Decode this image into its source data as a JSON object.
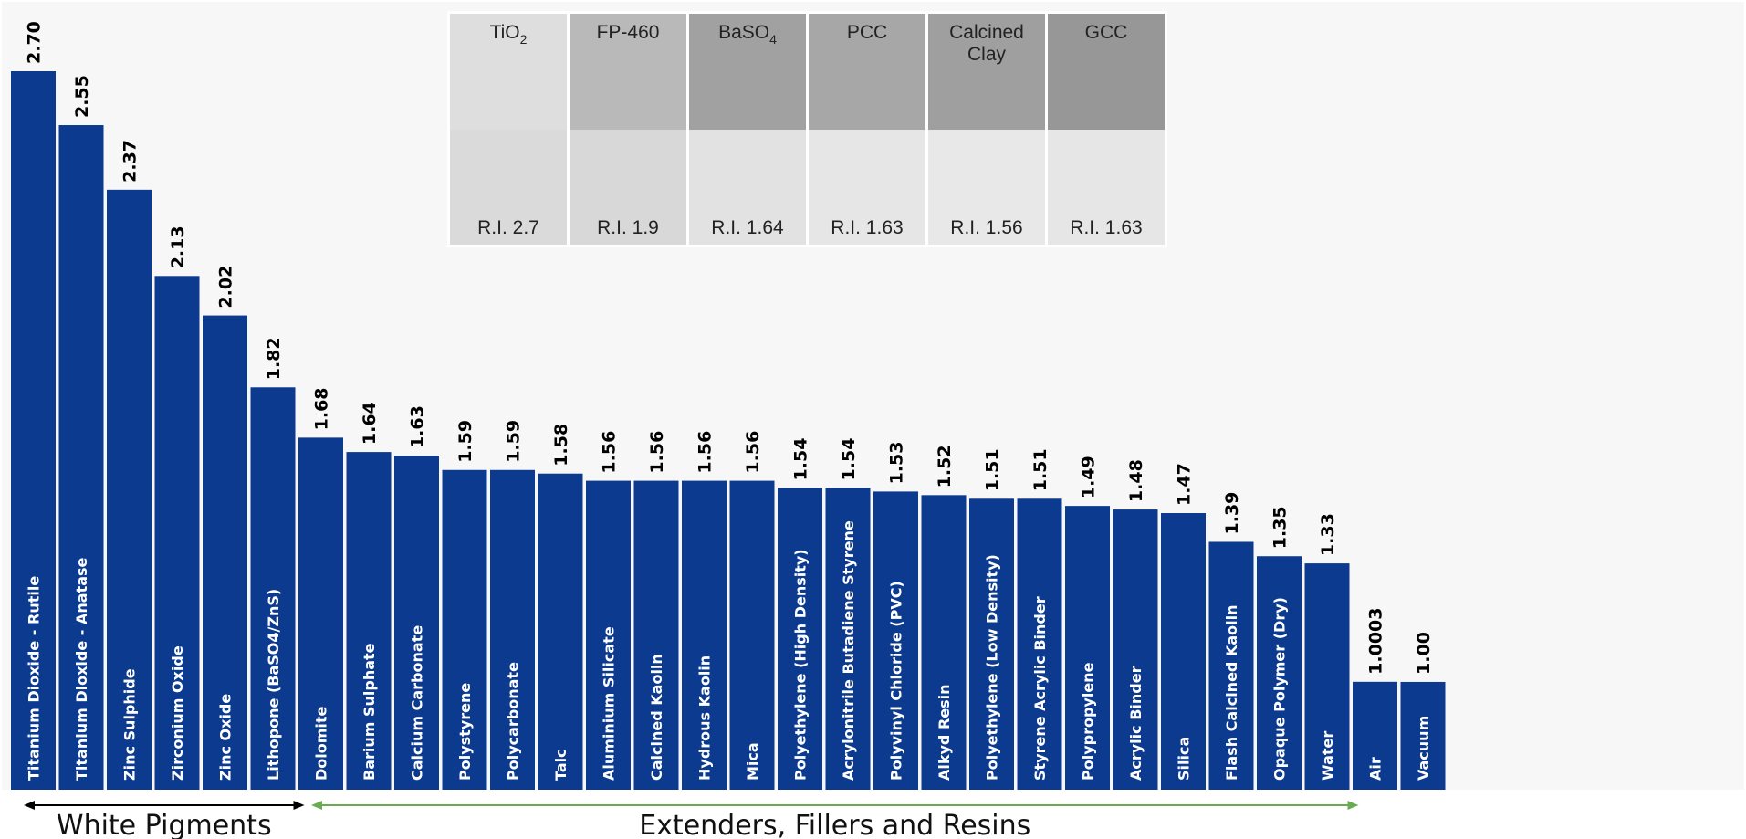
{
  "chart_data": {
    "type": "bar",
    "categories": [
      "Titanium Dioxide - Rutile",
      "Titanium Dioxide - Anatase",
      "Zinc Sulphide",
      "Zirconium Oxide",
      "Zinc Oxide",
      "Lithopone (BaSO4/ZnS)",
      "Dolomite",
      "Barium Sulphate",
      "Calcium Carbonate",
      "Polystyrene",
      "Polycarbonate",
      "Talc",
      "Aluminium Silicate",
      "Calcined Kaolin",
      "Hydrous Kaolin",
      "Mica",
      "Polyethylene (High Density)",
      "Acrylonitrile Butadiene Styrene",
      "Polyvinyl Chloride (PVC)",
      "Alkyd Resin",
      "Polyethylene (Low Density)",
      "Styrene Acrylic Binder",
      "Polypropylene",
      "Acrylic Binder",
      "Silica",
      "Flash Calcined Kaolin",
      "Opaque Polymer (Dry)",
      "Water",
      "Air",
      "Vacuum"
    ],
    "values": [
      2.7,
      2.55,
      2.37,
      2.13,
      2.02,
      1.82,
      1.68,
      1.64,
      1.63,
      1.59,
      1.59,
      1.58,
      1.56,
      1.56,
      1.56,
      1.56,
      1.54,
      1.54,
      1.53,
      1.52,
      1.51,
      1.51,
      1.49,
      1.48,
      1.47,
      1.39,
      1.35,
      1.33,
      1.0003,
      1.0
    ],
    "value_labels": [
      "2.70",
      "2.55",
      "2.37",
      "2.13",
      "2.02",
      "1.82",
      "1.68",
      "1.64",
      "1.63",
      "1.59",
      "1.59",
      "1.58",
      "1.56",
      "1.56",
      "1.56",
      "1.56",
      "1.54",
      "1.54",
      "1.53",
      "1.52",
      "1.51",
      "1.51",
      "1.49",
      "1.48",
      "1.47",
      "1.39",
      "1.35",
      "1.33",
      "1.0003",
      "1.00"
    ],
    "ylim": [
      0.7,
      2.7
    ],
    "grid": false,
    "bar_color": "#0b3a8f",
    "groups": [
      {
        "label": "White Pigments",
        "from_index": 0,
        "to_index": 5,
        "arrow_color": "#000000"
      },
      {
        "label": "Extenders, Fillers and Resins",
        "from_index": 6,
        "to_index": 27,
        "arrow_color": "#6aaa50"
      }
    ]
  },
  "inset": {
    "swatches": [
      {
        "name": "TiO2",
        "ri": "R.I. 2.7",
        "top_color": "#dedede",
        "bottom_color": "#dadada"
      },
      {
        "name": "FP-460",
        "ri": "R.I. 1.9",
        "top_color": "#b9b9b9",
        "bottom_color": "#d8d8d8"
      },
      {
        "name": "BaSO4",
        "ri": "R.I. 1.64",
        "top_color": "#a1a1a1",
        "bottom_color": "#e2e2e2"
      },
      {
        "name": "PCC",
        "ri": "R.I. 1.63",
        "top_color": "#a7a7a7",
        "bottom_color": "#e6e6e6"
      },
      {
        "name": "Calcined Clay",
        "ri": "R.I. 1.56",
        "top_color": "#9f9f9f",
        "bottom_color": "#e8e8e8"
      },
      {
        "name": "GCC",
        "ri": "R.I. 1.63",
        "top_color": "#979797",
        "bottom_color": "#e6e6e6"
      }
    ]
  }
}
